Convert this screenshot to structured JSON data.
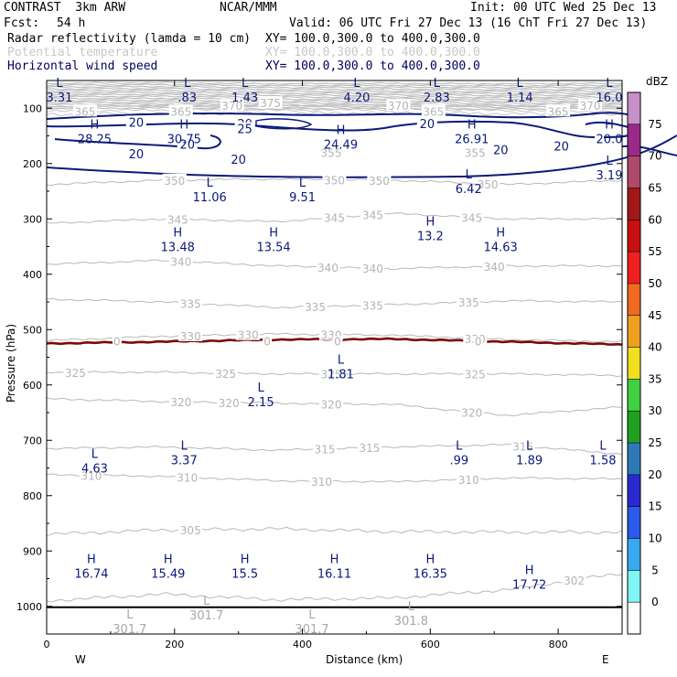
{
  "header": {
    "left_line1": "CONTRAST  3km ARW",
    "center_line1": "NCAR/MMM",
    "right_line1": "Init: 00 UTC Wed 25 Dec 13",
    "fcst_label": "Fcst:",
    "fcst_value": "54 h",
    "valid": "Valid: 06 UTC Fri 27 Dec 13 (16 ChT Fri 27 Dec 13)",
    "field1": "Radar reflectivity (lamda = 10 cm)",
    "field1_xy": "XY= 100.0,300.0 to 400.0,300.0",
    "field2": "Potential temperature",
    "field2_xy": "XY= 100.0,300.0 to 400.0,300.0",
    "field3": "Horizontal wind speed",
    "field3_xy": "XY= 100.0,300.0 to 400.0,300.0"
  },
  "colors": {
    "theta": "#b8b8b8",
    "wind": "#0a1a7a",
    "freezing": "#7a0a0a",
    "ground": "#000000"
  },
  "chart_data": {
    "type": "contour-cross-section",
    "xlabel": "Distance (km)",
    "ylabel": "Pressure (hPa)",
    "xlim": [
      0,
      900
    ],
    "ylim": [
      1050,
      50
    ],
    "x_ticks": [
      0,
      200,
      400,
      600,
      800
    ],
    "y_ticks": [
      100,
      200,
      300,
      400,
      500,
      600,
      700,
      800,
      900,
      1000
    ],
    "x_end_labels": {
      "left": "W",
      "right": "E"
    },
    "colorbar": {
      "unit": "dBZ",
      "levels": [
        0,
        5,
        10,
        15,
        20,
        25,
        30,
        35,
        40,
        45,
        50,
        55,
        60,
        65,
        70,
        75
      ],
      "colors": [
        "#ffffff",
        "#7ff5f5",
        "#3aa8f0",
        "#2a5ae8",
        "#2a2ad0",
        "#2e7ab8",
        "#20a020",
        "#40d040",
        "#f0e020",
        "#f0a020",
        "#f06a20",
        "#f02020",
        "#c81010",
        "#a01818",
        "#b04a6a",
        "#9a2a8a",
        "#c890c8"
      ]
    },
    "theta_contours": [
      {
        "level": 302,
        "p": [
          990,
          978,
          988,
          985,
          970,
          940
        ],
        "labels": [
          {
            "x": 825,
            "text": "302"
          }
        ]
      },
      {
        "level": 305,
        "p": [
          870,
          862,
          860,
          865,
          866,
          866
        ],
        "labels": [
          {
            "x": 225,
            "text": "305"
          }
        ]
      },
      {
        "level": 310,
        "p": [
          762,
          765,
          773,
          775,
          768,
          770
        ],
        "labels": [
          {
            "x": 70,
            "text": "310"
          },
          {
            "x": 220,
            "text": "310"
          },
          {
            "x": 430,
            "text": "310"
          },
          {
            "x": 660,
            "text": "310"
          }
        ]
      },
      {
        "level": 315,
        "p": [
          715,
          712,
          718,
          712,
          708,
          725
        ],
        "labels": [
          {
            "x": 435,
            "text": "315"
          },
          {
            "x": 505,
            "text": "315"
          },
          {
            "x": 745,
            "text": "315"
          }
        ]
      },
      {
        "level": 320,
        "p": [
          625,
          630,
          633,
          635,
          655,
          640
        ],
        "labels": [
          {
            "x": 210,
            "text": "320"
          },
          {
            "x": 285,
            "text": "320"
          },
          {
            "x": 445,
            "text": "320"
          },
          {
            "x": 665,
            "text": "320"
          }
        ]
      },
      {
        "level": 325,
        "p": [
          577,
          577,
          580,
          580,
          580,
          583
        ],
        "labels": [
          {
            "x": 45,
            "text": "325"
          },
          {
            "x": 280,
            "text": "325"
          },
          {
            "x": 445,
            "text": "325"
          },
          {
            "x": 670,
            "text": "325"
          }
        ]
      },
      {
        "level": 330,
        "p": [
          520,
          512,
          508,
          510,
          518,
          522
        ],
        "labels": [
          {
            "x": 225,
            "text": "330"
          },
          {
            "x": 315,
            "text": "330"
          },
          {
            "x": 445,
            "text": "330"
          },
          {
            "x": 670,
            "text": "330"
          }
        ]
      },
      {
        "level": 335,
        "p": [
          445,
          450,
          460,
          455,
          448,
          450
        ],
        "labels": [
          {
            "x": 225,
            "text": "335"
          },
          {
            "x": 420,
            "text": "335"
          },
          {
            "x": 510,
            "text": "335"
          },
          {
            "x": 660,
            "text": "335"
          }
        ]
      },
      {
        "level": 340,
        "p": [
          382,
          375,
          385,
          390,
          385,
          385
        ],
        "labels": [
          {
            "x": 210,
            "text": "340"
          },
          {
            "x": 440,
            "text": "340"
          },
          {
            "x": 510,
            "text": "340"
          },
          {
            "x": 700,
            "text": "340"
          }
        ]
      },
      {
        "level": 345,
        "p": [
          308,
          300,
          305,
          290,
          300,
          300
        ],
        "labels": [
          {
            "x": 205,
            "text": "345"
          },
          {
            "x": 450,
            "text": "345"
          },
          {
            "x": 510,
            "text": "345"
          },
          {
            "x": 665,
            "text": "345"
          }
        ]
      },
      {
        "level": 350,
        "p": [
          238,
          230,
          228,
          230,
          238,
          230
        ],
        "labels": [
          {
            "x": 200,
            "text": "350"
          },
          {
            "x": 450,
            "text": "350"
          },
          {
            "x": 520,
            "text": "350"
          },
          {
            "x": 690,
            "text": "350"
          }
        ]
      }
    ],
    "theta_upper_labels": [
      {
        "x": 210,
        "p": 105,
        "text": "365"
      },
      {
        "x": 60,
        "p": 105,
        "text": "365"
      },
      {
        "x": 290,
        "p": 95,
        "text": "370"
      },
      {
        "x": 350,
        "p": 90,
        "text": "375"
      },
      {
        "x": 550,
        "p": 95,
        "text": "370"
      },
      {
        "x": 605,
        "p": 105,
        "text": "365"
      },
      {
        "x": 800,
        "p": 105,
        "text": "365"
      },
      {
        "x": 850,
        "p": 95,
        "text": "370"
      },
      {
        "x": 445,
        "p": 180,
        "text": "355"
      },
      {
        "x": 670,
        "p": 180,
        "text": "355"
      }
    ],
    "freezing_level": {
      "level": 0,
      "p": [
        525,
        522,
        518,
        517,
        522,
        527
      ],
      "labels": [
        {
          "x": 110,
          "text": "0"
        },
        {
          "x": 345,
          "text": "0"
        },
        {
          "x": 455,
          "text": "0"
        },
        {
          "x": 675,
          "text": "0"
        }
      ]
    },
    "wind_contours": [
      {
        "level": 20,
        "labels": [
          {
            "x": 140,
            "p": 125,
            "text": "20"
          },
          {
            "x": 220,
            "p": 165,
            "text": "20"
          },
          {
            "x": 140,
            "p": 182,
            "text": "20"
          },
          {
            "x": 310,
            "p": 128,
            "text": "20"
          },
          {
            "x": 300,
            "p": 192,
            "text": "20"
          },
          {
            "x": 595,
            "p": 128,
            "text": "20"
          },
          {
            "x": 710,
            "p": 175,
            "text": "20"
          },
          {
            "x": 805,
            "p": 168,
            "text": "20"
          }
        ]
      },
      {
        "level": 25,
        "labels": [
          {
            "x": 310,
            "p": 137,
            "text": "25"
          }
        ]
      }
    ],
    "extrema": [
      {
        "type": "L",
        "x": 20,
        "p": 75,
        "value": "3.31"
      },
      {
        "type": "L",
        "x": 220,
        "p": 75,
        "value": ".83"
      },
      {
        "type": "L",
        "x": 310,
        "p": 75,
        "value": "1.43"
      },
      {
        "type": "L",
        "x": 485,
        "p": 75,
        "value": "4.20"
      },
      {
        "type": "L",
        "x": 610,
        "p": 75,
        "value": "2.83"
      },
      {
        "type": "L",
        "x": 740,
        "p": 75,
        "value": "1.14"
      },
      {
        "type": "L",
        "x": 880,
        "p": 75,
        "value": "16.0"
      },
      {
        "type": "H",
        "x": 75,
        "p": 150,
        "value": "28.25"
      },
      {
        "type": "H",
        "x": 215,
        "p": 150,
        "value": "30.75"
      },
      {
        "type": "H",
        "x": 460,
        "p": 160,
        "value": "24.49"
      },
      {
        "type": "H",
        "x": 665,
        "p": 150,
        "value": "26.91"
      },
      {
        "type": "H",
        "x": 880,
        "p": 150,
        "value": "20.0"
      },
      {
        "type": "L",
        "x": 255,
        "p": 255,
        "value": "11.06"
      },
      {
        "type": "L",
        "x": 400,
        "p": 255,
        "value": "9.51"
      },
      {
        "type": "L",
        "x": 660,
        "p": 240,
        "value": "6.42"
      },
      {
        "type": "L",
        "x": 880,
        "p": 215,
        "value": "3.19"
      },
      {
        "type": "H",
        "x": 205,
        "p": 345,
        "value": "13.48"
      },
      {
        "type": "H",
        "x": 355,
        "p": 345,
        "value": "13.54"
      },
      {
        "type": "H",
        "x": 600,
        "p": 325,
        "value": "13.2"
      },
      {
        "type": "H",
        "x": 710,
        "p": 345,
        "value": "14.63"
      },
      {
        "type": "L",
        "x": 460,
        "p": 575,
        "value": "1.81"
      },
      {
        "type": "L",
        "x": 335,
        "p": 625,
        "value": "2.15"
      },
      {
        "type": "L",
        "x": 215,
        "p": 730,
        "value": "3.37"
      },
      {
        "type": "L",
        "x": 645,
        "p": 730,
        "value": ".99"
      },
      {
        "type": "L",
        "x": 755,
        "p": 730,
        "value": "1.89"
      },
      {
        "type": "L",
        "x": 870,
        "p": 730,
        "value": "1.58"
      },
      {
        "type": "L",
        "x": 75,
        "p": 745,
        "value": "4.63"
      },
      {
        "type": "H",
        "x": 70,
        "p": 935,
        "value": "16.74"
      },
      {
        "type": "H",
        "x": 190,
        "p": 935,
        "value": "15.49"
      },
      {
        "type": "H",
        "x": 310,
        "p": 935,
        "value": "15.5"
      },
      {
        "type": "H",
        "x": 450,
        "p": 935,
        "value": "16.11"
      },
      {
        "type": "H",
        "x": 600,
        "p": 935,
        "value": "16.35"
      },
      {
        "type": "H",
        "x": 755,
        "p": 955,
        "value": "17.72"
      },
      {
        "type": "L",
        "x": 130,
        "p": 1035,
        "value": "301.7",
        "gray": true
      },
      {
        "type": "L",
        "x": 250,
        "p": 1010,
        "value": "301.7",
        "gray": true
      },
      {
        "type": "L",
        "x": 415,
        "p": 1035,
        "value": "301.7",
        "gray": true
      },
      {
        "type": "L",
        "x": 570,
        "p": 1020,
        "value": "301.8",
        "gray": true
      }
    ]
  }
}
